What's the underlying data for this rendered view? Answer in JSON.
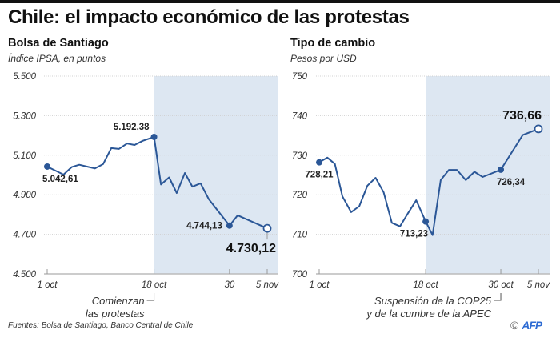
{
  "title": "Chile: el impacto económico de las protestas",
  "source": "Fuentes: Bolsa de Santiago, Banco Central de Chile",
  "credit": {
    "symbol": "©",
    "logo": "AFP"
  },
  "colors": {
    "line": "#2b5797",
    "shade": "#dde7f2",
    "grid": "#cfcfcf",
    "axis": "#bbbbbb"
  },
  "chart_data": [
    {
      "type": "line",
      "title": "Bolsa de Santiago",
      "subtitle": "Índice IPSA, en puntos",
      "ylim": [
        4500,
        5500
      ],
      "yticks": [
        5500,
        5300,
        5100,
        4900,
        4700,
        4500
      ],
      "ytick_labels": [
        "5.500",
        "5.300",
        "5.100",
        "4.900",
        "4.700",
        "4.500"
      ],
      "x_day_range": [
        1,
        36
      ],
      "xticks": [
        {
          "day": 1,
          "label": "1 oct"
        },
        {
          "day": 18,
          "label": "18 oct"
        },
        {
          "day": 30,
          "label": "30"
        },
        {
          "day": 36,
          "label": "5 nov"
        }
      ],
      "shaded_from_day": 18,
      "annotation": {
        "day": 18,
        "lines": [
          "Comienzan",
          "las protestas"
        ]
      },
      "points": [
        {
          "day": 1,
          "value": 5042.61
        },
        {
          "day": 3.6,
          "value": 5002
        },
        {
          "day": 4.9,
          "value": 5040
        },
        {
          "day": 6.1,
          "value": 5052
        },
        {
          "day": 7.4,
          "value": 5042
        },
        {
          "day": 8.6,
          "value": 5033
        },
        {
          "day": 9.9,
          "value": 5055
        },
        {
          "day": 11.2,
          "value": 5136
        },
        {
          "day": 12.4,
          "value": 5132
        },
        {
          "day": 13.7,
          "value": 5159
        },
        {
          "day": 14.9,
          "value": 5152
        },
        {
          "day": 16.2,
          "value": 5173
        },
        {
          "day": 18,
          "value": 5192.38
        },
        {
          "day": 19.1,
          "value": 4952
        },
        {
          "day": 20.4,
          "value": 4988
        },
        {
          "day": 21.6,
          "value": 4909
        },
        {
          "day": 22.9,
          "value": 5010
        },
        {
          "day": 24.1,
          "value": 4941
        },
        {
          "day": 25.4,
          "value": 4958
        },
        {
          "day": 26.7,
          "value": 4878
        },
        {
          "day": 30,
          "value": 4744.13
        },
        {
          "day": 31.3,
          "value": 4796
        },
        {
          "day": 36,
          "value": 4730.12
        }
      ],
      "highlights": [
        {
          "day": 1,
          "value": 5042.61,
          "label": "5.042,61",
          "pos": "below",
          "style": "filled"
        },
        {
          "day": 18,
          "value": 5192.38,
          "label": "5.192,38",
          "pos": "above-left",
          "style": "filled"
        },
        {
          "day": 30,
          "value": 4744.13,
          "label": "4.744,13",
          "pos": "left",
          "style": "filled"
        },
        {
          "day": 36,
          "value": 4730.12,
          "label": "4.730,12",
          "pos": "below-big",
          "style": "open"
        }
      ]
    },
    {
      "type": "line",
      "title": "Tipo de cambio",
      "subtitle": "Pesos por USD",
      "ylim": [
        700,
        750
      ],
      "yticks": [
        750,
        740,
        730,
        720,
        710,
        700
      ],
      "ytick_labels": [
        "750",
        "740",
        "730",
        "720",
        "710",
        "700"
      ],
      "x_day_range": [
        1,
        36
      ],
      "xticks": [
        {
          "day": 1,
          "label": "1 oct"
        },
        {
          "day": 18,
          "label": "18 oct"
        },
        {
          "day": 30,
          "label": "30 oct"
        },
        {
          "day": 36,
          "label": "5 nov"
        }
      ],
      "shaded_from_day": 18,
      "annotation": {
        "day": 30,
        "lines": [
          "Suspensión de la COP25",
          "y de la cumbre de la APEC"
        ]
      },
      "points": [
        {
          "day": 1,
          "value": 728.21
        },
        {
          "day": 2.3,
          "value": 729.4
        },
        {
          "day": 3.5,
          "value": 727.8
        },
        {
          "day": 4.7,
          "value": 719.6
        },
        {
          "day": 6.1,
          "value": 715.6
        },
        {
          "day": 7.4,
          "value": 717.1
        },
        {
          "day": 8.7,
          "value": 722.3
        },
        {
          "day": 10,
          "value": 724.3
        },
        {
          "day": 11.3,
          "value": 720.6
        },
        {
          "day": 12.6,
          "value": 712.9
        },
        {
          "day": 13.9,
          "value": 712.0
        },
        {
          "day": 15.2,
          "value": 715.4
        },
        {
          "day": 16.5,
          "value": 718.6
        },
        {
          "day": 18,
          "value": 713.23
        },
        {
          "day": 19.1,
          "value": 709.8
        },
        {
          "day": 20.4,
          "value": 723.7
        },
        {
          "day": 21.7,
          "value": 726.3
        },
        {
          "day": 23,
          "value": 726.3
        },
        {
          "day": 24.4,
          "value": 723.7
        },
        {
          "day": 25.8,
          "value": 725.8
        },
        {
          "day": 27.1,
          "value": 724.5
        },
        {
          "day": 30,
          "value": 726.34
        },
        {
          "day": 33.5,
          "value": 735.1
        },
        {
          "day": 36,
          "value": 736.66
        }
      ],
      "highlights": [
        {
          "day": 1,
          "value": 728.21,
          "label": "728,21",
          "pos": "below",
          "style": "filled"
        },
        {
          "day": 18,
          "value": 713.23,
          "label": "713,23",
          "pos": "below-left",
          "style": "filled"
        },
        {
          "day": 30,
          "value": 726.34,
          "label": "726,34",
          "pos": "below-right",
          "style": "filled"
        },
        {
          "day": 36,
          "value": 736.66,
          "label": "736,66",
          "pos": "above-big",
          "style": "open"
        }
      ]
    }
  ]
}
